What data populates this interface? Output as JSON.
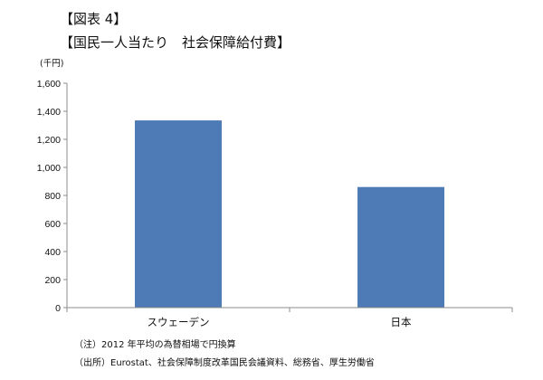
{
  "figure_label": "【図表 4】",
  "figure_title": "【国民一人当たり　社会保障給付費】",
  "chart_data": {
    "type": "bar",
    "title": "【国民一人当たり　社会保障給付費】",
    "ylabel": "(千円)",
    "xlabel": "",
    "categories": [
      "スウェーデン",
      "日本"
    ],
    "values": [
      1335,
      860
    ],
    "ylim": [
      0,
      1600
    ],
    "yticks": [
      0,
      200,
      400,
      600,
      800,
      1000,
      1200,
      1400,
      1600
    ],
    "ytick_labels": [
      "0",
      "200",
      "400",
      "600",
      "800",
      "1,000",
      "1,200",
      "1,400",
      "1,600"
    ],
    "grid": false,
    "legend": "none",
    "bar_color": "#4e7ab5"
  },
  "notes": [
    "（注）2012 年平均の為替相場で円換算",
    "（出所）Eurostat、社会保障制度改革国民会議資料、総務省、厚生労働省"
  ]
}
